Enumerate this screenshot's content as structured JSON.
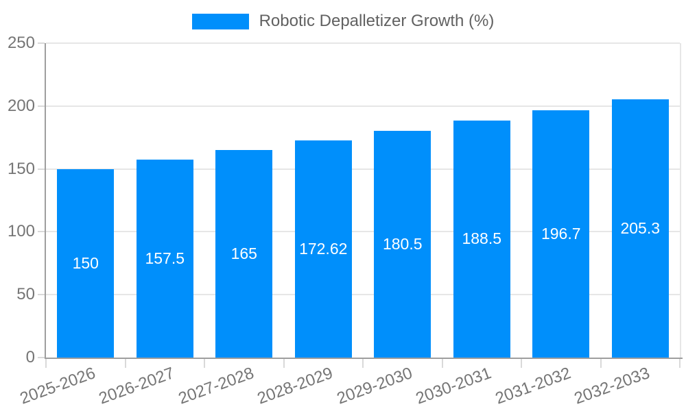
{
  "legend": {
    "label": "Robotic Depalletizer Growth (%)"
  },
  "colors": {
    "bar": "#008FFB",
    "value_label": "#ffffff",
    "axis_text": "#757575",
    "legend_text": "#616161",
    "gridline": "#e6e6e6",
    "axis_line": "#9e9e9e",
    "tick": "#d9d9d9"
  },
  "chart_data": {
    "type": "bar",
    "title": "Robotic Depalletizer Growth (%)",
    "categories": [
      "2025-2026",
      "2026-2027",
      "2027-2028",
      "2028-2029",
      "2029-2030",
      "2030-2031",
      "2031-2032",
      "2032-2033"
    ],
    "values": [
      150,
      157.5,
      165,
      172.62,
      180.5,
      188.5,
      196.7,
      205.3
    ],
    "value_labels": [
      "150",
      "157.5",
      "165",
      "172.62",
      "180.5",
      "188.5",
      "196.7",
      "205.3"
    ],
    "xlabel": "",
    "ylabel": "",
    "ylim": [
      0,
      250
    ],
    "yticks": [
      0,
      50,
      100,
      150,
      200,
      250
    ],
    "grid": true,
    "legend_position": "top",
    "x_label_rotation_deg": -20
  }
}
